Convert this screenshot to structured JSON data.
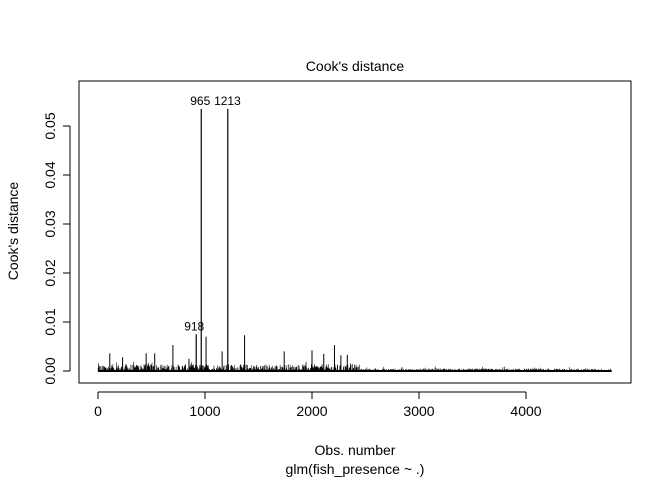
{
  "chart_data": {
    "type": "bar",
    "subtitle": "Cook's distance",
    "xlabel": "Obs. number",
    "caption": "glm(fish_presence ~ .)",
    "ylabel": "Cook's distance",
    "xlim": [
      0,
      4800
    ],
    "ylim": [
      0,
      0.05
    ],
    "x_ticks": [
      0,
      1000,
      2000,
      3000,
      4000
    ],
    "y_ticks": [
      0.0,
      0.01,
      0.02,
      0.03,
      0.04,
      0.05
    ],
    "x_tick_labels": [
      "0",
      "1000",
      "2000",
      "3000",
      "4000"
    ],
    "y_tick_labels": [
      "0.00",
      "0.01",
      "0.02",
      "0.03",
      "0.04",
      "0.05"
    ],
    "n_obs": 4800,
    "highlighted": [
      {
        "x": 965,
        "y": 0.0535,
        "label": "965"
      },
      {
        "x": 1213,
        "y": 0.0535,
        "label": "1213"
      },
      {
        "x": 918,
        "y": 0.0075,
        "label": "918"
      }
    ],
    "notable_spikes": [
      {
        "x": 110,
        "y": 0.0036
      },
      {
        "x": 230,
        "y": 0.0028
      },
      {
        "x": 450,
        "y": 0.0036
      },
      {
        "x": 530,
        "y": 0.0036
      },
      {
        "x": 700,
        "y": 0.0053
      },
      {
        "x": 850,
        "y": 0.0025
      },
      {
        "x": 1010,
        "y": 0.007
      },
      {
        "x": 1160,
        "y": 0.004
      },
      {
        "x": 1370,
        "y": 0.0073
      },
      {
        "x": 1740,
        "y": 0.004
      },
      {
        "x": 2000,
        "y": 0.0042
      },
      {
        "x": 2110,
        "y": 0.0035
      },
      {
        "x": 2210,
        "y": 0.0053
      },
      {
        "x": 2270,
        "y": 0.0032
      },
      {
        "x": 2330,
        "y": 0.0033
      }
    ]
  }
}
